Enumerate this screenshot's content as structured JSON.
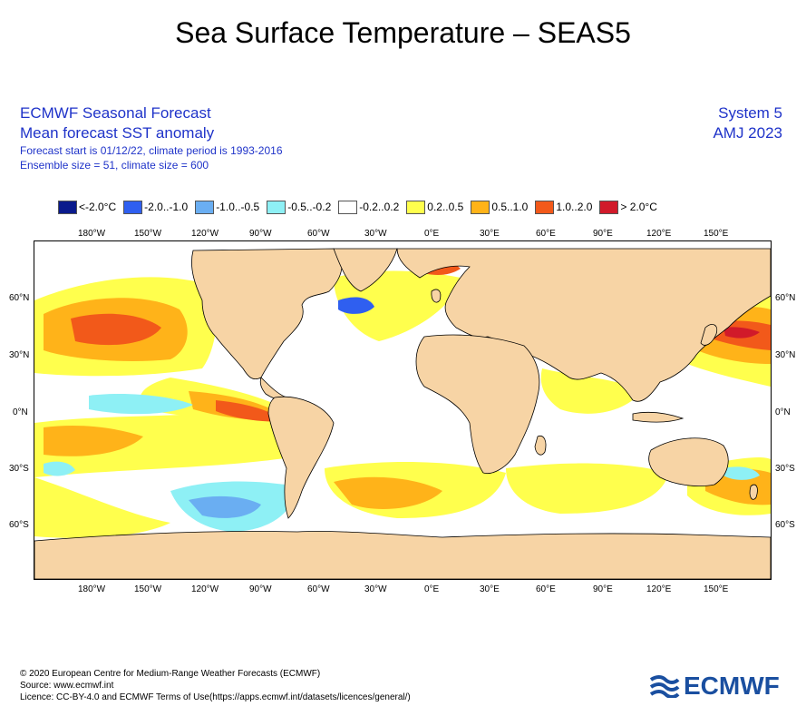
{
  "title": "Sea Surface Temperature – SEAS5",
  "header_left": {
    "line1": "ECMWF Seasonal Forecast",
    "line2": "Mean forecast SST anomaly",
    "line3": "Forecast start is 01/12/22, climate period is 1993-2016",
    "line4": "Ensemble size = 51, climate size = 600"
  },
  "header_right": {
    "system": "System 5",
    "season": "AMJ 2023"
  },
  "legend": [
    {
      "label": "<-2.0°C",
      "color": "#0a1a8c"
    },
    {
      "label": "-2.0..-1.0",
      "color": "#2f5ff0"
    },
    {
      "label": "-1.0..-0.5",
      "color": "#6aaef2"
    },
    {
      "label": "-0.5..-0.2",
      "color": "#8ef0f5"
    },
    {
      "label": "-0.2..0.2",
      "color": "#ffffff"
    },
    {
      "label": "0.2..0.5",
      "color": "#ffff4d"
    },
    {
      "label": "0.5..1.0",
      "color": "#ffb319"
    },
    {
      "label": "1.0..2.0",
      "color": "#f2591a"
    },
    {
      "label": "> 2.0°C",
      "color": "#d11a2a"
    }
  ],
  "lon_labels": [
    "180°W",
    "150°W",
    "120°W",
    "90°W",
    "60°W",
    "30°W",
    "0°E",
    "30°E",
    "60°E",
    "90°E",
    "120°E",
    "150°E"
  ],
  "lat_labels": [
    "60°N",
    "30°N",
    "0°N",
    "30°S",
    "60°S"
  ],
  "colors": {
    "land": "#f7d4a5",
    "header_blue": "#1f33c9",
    "logo_blue": "#1a4fa0"
  },
  "footer": {
    "line1": "© 2020 European Centre for Medium-Range Weather Forecasts (ECMWF)",
    "line2": "Source: www.ecmwf.int",
    "line3": "Licence: CC-BY-4.0 and ECMWF Terms of Use(https://apps.ecmwf.int/datasets/licences/general/)"
  },
  "logo_text": "ECMWF"
}
